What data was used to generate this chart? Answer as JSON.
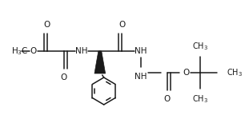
{
  "bg_color": "#ffffff",
  "line_color": "#1a1a1a",
  "line_width": 1.1,
  "figsize": [
    3.06,
    1.54
  ],
  "dpi": 100,
  "xlim": [
    0,
    306
  ],
  "ylim": [
    0,
    154
  ]
}
